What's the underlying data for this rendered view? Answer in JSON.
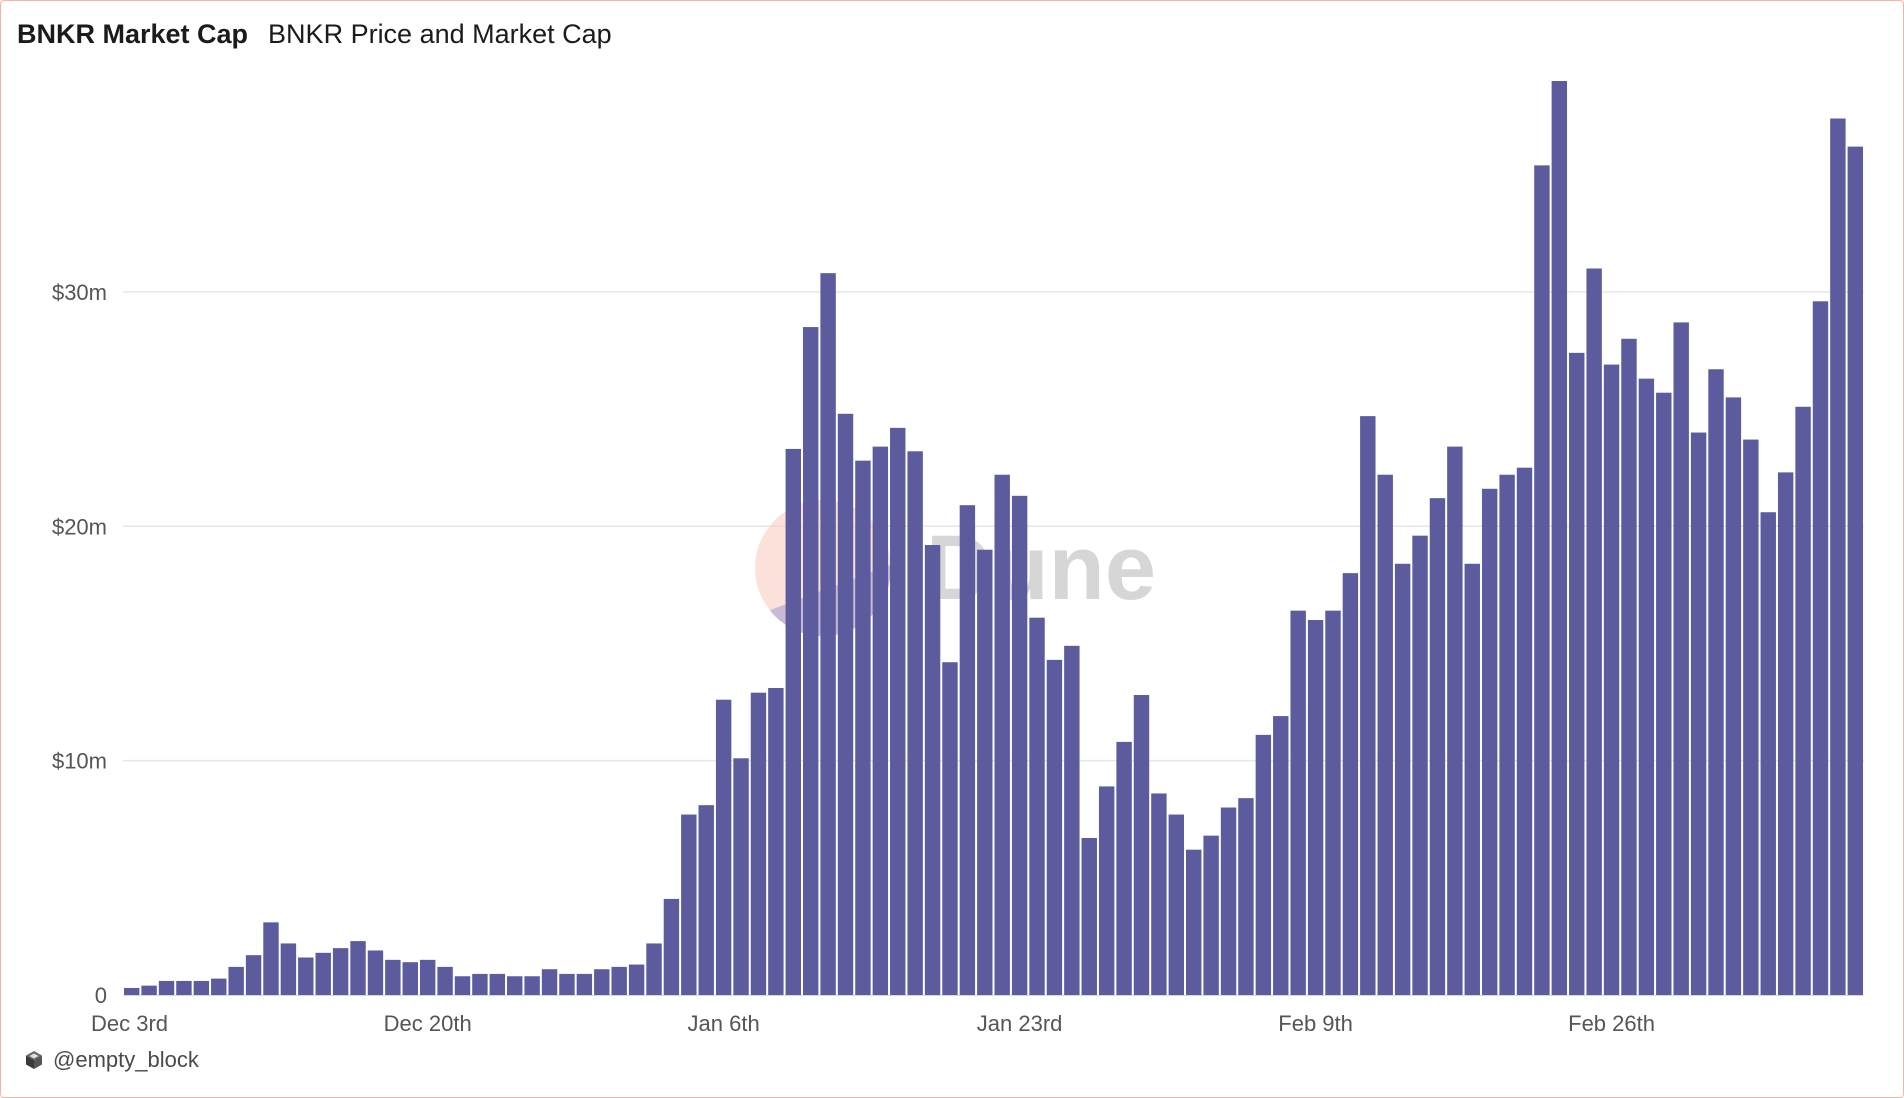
{
  "header": {
    "title": "BNKR Market Cap",
    "subtitle": "BNKR Price and Market Cap"
  },
  "watermark": {
    "text": "Dune"
  },
  "footer": {
    "author": "@empty_block",
    "icon": "cube-icon"
  },
  "colors": {
    "bar": "#5b5b9e",
    "grid": "#e6e6e6",
    "axis_text": "#555555",
    "border": "#f2b5a3",
    "watermark_text": "#c9c9c9",
    "watermark_circle_top": "#f8c9bc",
    "watermark_circle_bottom": "#9a9ad2"
  },
  "chart_data": {
    "type": "bar",
    "title": "BNKR Price and Market Cap",
    "xlabel": "",
    "ylabel": "",
    "ylim": [
      0,
      39
    ],
    "y_ticks": [
      0,
      10,
      20,
      30
    ],
    "y_tick_labels": [
      "0",
      "$10m",
      "$20m",
      "$30m"
    ],
    "x_tick_labels": [
      "Dec 3rd",
      "Dec 20th",
      "Jan 6th",
      "Jan 23rd",
      "Feb 9th",
      "Feb 26th"
    ],
    "x_tick_indices": [
      0,
      17,
      34,
      51,
      68,
      85
    ],
    "grid": true,
    "legend": "none",
    "unit": "$m",
    "values": [
      0.3,
      0.4,
      0.6,
      0.6,
      0.6,
      0.7,
      1.2,
      1.7,
      3.1,
      2.2,
      1.6,
      1.8,
      2.0,
      2.3,
      1.9,
      1.5,
      1.4,
      1.5,
      1.2,
      0.8,
      0.9,
      0.9,
      0.8,
      0.8,
      1.1,
      0.9,
      0.9,
      1.1,
      1.2,
      1.3,
      2.2,
      4.1,
      7.7,
      8.1,
      12.6,
      10.1,
      12.9,
      13.1,
      23.3,
      28.5,
      30.8,
      24.8,
      22.8,
      23.4,
      24.2,
      23.2,
      19.2,
      14.2,
      20.9,
      19.0,
      22.2,
      21.3,
      16.1,
      14.3,
      14.9,
      6.7,
      8.9,
      10.8,
      12.8,
      8.6,
      7.7,
      6.2,
      6.8,
      8.0,
      8.4,
      11.1,
      11.9,
      16.4,
      16.0,
      16.4,
      18.0,
      24.7,
      22.2,
      18.4,
      19.6,
      21.2,
      23.4,
      18.4,
      21.6,
      22.2,
      22.5,
      35.4,
      39.0,
      27.4,
      31.0,
      26.9,
      28.0,
      26.3,
      25.7,
      28.7,
      24.0,
      26.7,
      25.5,
      23.7,
      20.6,
      22.3,
      25.1,
      29.6,
      37.4,
      36.2
    ]
  }
}
